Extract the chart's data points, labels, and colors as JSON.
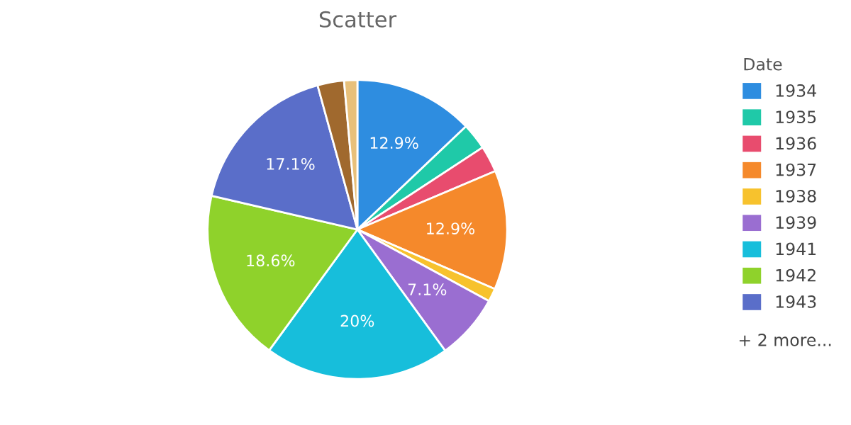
{
  "chart_data": {
    "type": "pie",
    "title": "Scatter",
    "legend_title": "Date",
    "legend": "right",
    "categories": [
      "1934",
      "1935",
      "1936",
      "1937",
      "1938",
      "1939",
      "1941",
      "1942",
      "1943",
      null,
      null
    ],
    "values": [
      12.9,
      2.86,
      2.86,
      12.9,
      1.43,
      7.1,
      20,
      18.6,
      17.1,
      2.86,
      1.43
    ],
    "value_labels": [
      "12.9%",
      null,
      null,
      "12.9%",
      null,
      "7.1%",
      "20%",
      "18.6%",
      "17.1%",
      null,
      null
    ],
    "colors": [
      "#2e8de0",
      "#1fc9a8",
      "#e84c6e",
      "#f5892b",
      "#f7c22d",
      "#9a6ed1",
      "#17bedb",
      "#8fd22b",
      "#5a6ec9",
      "#a0692e",
      "#e8c07a"
    ],
    "annotations": [
      "+ 2 more..."
    ]
  }
}
